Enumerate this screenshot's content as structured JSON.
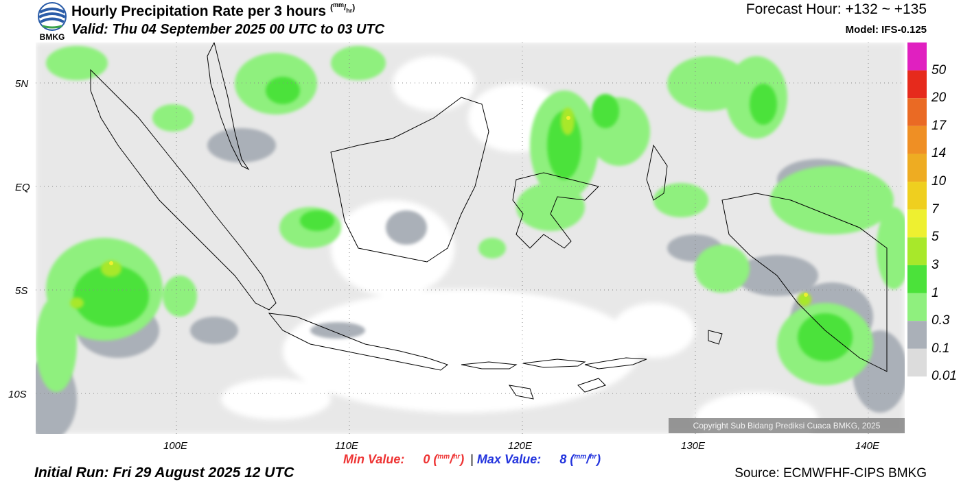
{
  "header": {
    "title": "Hourly Precipitation Rate per 3 hours",
    "title_units_num": "mm",
    "title_units_den": "hr",
    "valid": "Valid: Thu 04 September 2025 00 UTC to 03 UTC",
    "forecast_hour": "Forecast Hour: +132 ~ +135",
    "model": "Model: IFS-0.125",
    "logo_text": "BMKG"
  },
  "map": {
    "lat_labels": [
      "5N",
      "EQ",
      "5S",
      "10S"
    ],
    "lon_labels": [
      "100E",
      "110E",
      "120E",
      "130E",
      "140E"
    ],
    "copyright": "Copyright Sub Bidang Prediksi Cuaca BMKG, 2025",
    "colors": {
      "land_border": "#000000",
      "grid": "#888888"
    }
  },
  "colorbar": {
    "labels": [
      "50",
      "20",
      "17",
      "14",
      "10",
      "7",
      "5",
      "3",
      "1",
      "0.3",
      "0.1",
      "0.01"
    ],
    "colors": [
      "#e020c0",
      "#e62a1c",
      "#ea6a24",
      "#ef8f24",
      "#eeac22",
      "#efcf1f",
      "#eef030",
      "#a8e82a",
      "#4be23a",
      "#8ff07e",
      "#aab0b8",
      "#dcdcdc",
      "#ffffff"
    ]
  },
  "footer": {
    "min_label": "Min Value:",
    "min_value": "0",
    "max_label": "Max Value:",
    "max_value": "8",
    "unit_num": "mm",
    "unit_den": "hr",
    "separator": "|",
    "initial_run": "Initial Run: Fri 29 August 2025 12 UTC",
    "source": "Source: ECMWFHF-CIPS BMKG"
  }
}
